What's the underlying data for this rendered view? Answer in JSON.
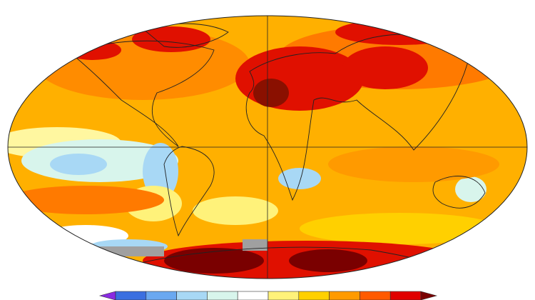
{
  "colorbar": {
    "colors": [
      "#8a2be2",
      "#3b6fe0",
      "#6aa8f0",
      "#a8d8f5",
      "#d8f5ec",
      "#ffffff",
      "#fff27a",
      "#ffd000",
      "#ff9a00",
      "#ff5a00",
      "#e00000",
      "#7a0000"
    ]
  }
}
